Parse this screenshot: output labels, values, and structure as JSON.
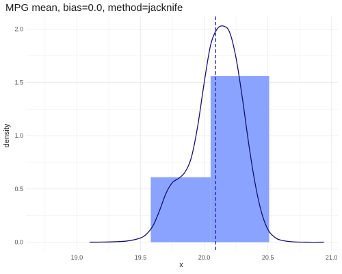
{
  "chart_data": {
    "type": "histogram",
    "title": "MPG mean, bias=0.0, method=jacknife",
    "xlabel": "x",
    "ylabel": "density",
    "xlim": [
      18.6,
      21.05
    ],
    "ylim": [
      -0.08,
      2.12
    ],
    "x_ticks": [
      19.0,
      19.5,
      20.0,
      20.5,
      21.0
    ],
    "x_tick_labels": [
      "19.0",
      "19.5",
      "20.0",
      "20.5",
      "21.0"
    ],
    "y_ticks": [
      0.0,
      0.5,
      1.0,
      1.5,
      2.0
    ],
    "y_tick_labels": [
      "0.0",
      "0.5",
      "1.0",
      "1.5",
      "2.0"
    ],
    "grid": true,
    "bins": [
      {
        "x0": 19.58,
        "x1": 20.05,
        "density": 0.61
      },
      {
        "x0": 20.05,
        "x1": 20.51,
        "density": 1.56
      }
    ],
    "density_curve": {
      "x": [
        19.1,
        19.2,
        19.3,
        19.4,
        19.5,
        19.55,
        19.6,
        19.65,
        19.7,
        19.75,
        19.8,
        19.85,
        19.9,
        19.95,
        20.0,
        20.05,
        20.1,
        20.15,
        20.2,
        20.25,
        20.3,
        20.35,
        20.4,
        20.45,
        20.5,
        20.55,
        20.6,
        20.7,
        20.8,
        20.94
      ],
      "y": [
        0.0,
        0.001,
        0.004,
        0.012,
        0.04,
        0.08,
        0.16,
        0.3,
        0.46,
        0.56,
        0.6,
        0.66,
        0.8,
        1.1,
        1.5,
        1.85,
        2.0,
        2.03,
        1.97,
        1.73,
        1.35,
        0.92,
        0.55,
        0.28,
        0.12,
        0.05,
        0.02,
        0.003,
        0.0,
        0.0
      ]
    },
    "mean_line_x": 20.09,
    "colors": {
      "bar": "#8aa3ff",
      "curve": "#10106a",
      "mean_line": "#2424b8",
      "grid": "#ebebeb"
    }
  }
}
